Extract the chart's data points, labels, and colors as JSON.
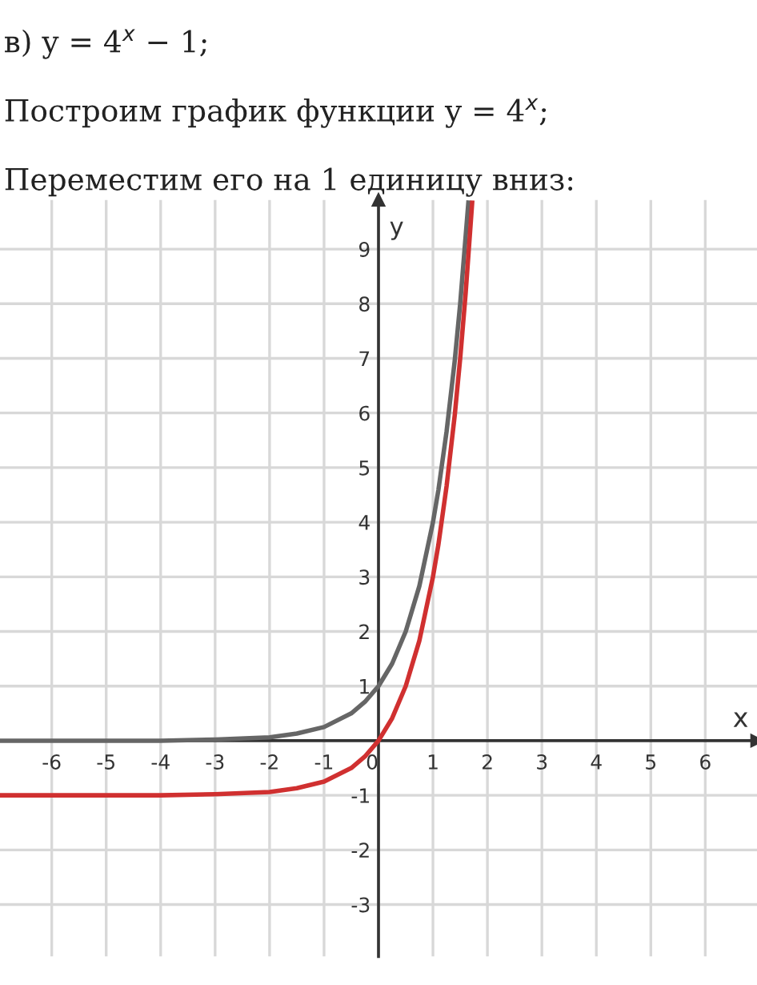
{
  "chart_data": {
    "type": "line",
    "annotations": [
      "в) y = 4$^{x}$ − 1;",
      "Построим график функции y = 4$^{x}$;",
      "Переместим его на 1 единицу вниз:"
    ],
    "xlabel": "x",
    "ylabel": "y",
    "series": [
      {
        "color": "#666666",
        "x": [
          -6.95,
          -5,
          -4,
          -3,
          -2,
          -1.5,
          -1,
          -0.5,
          -0.25,
          0,
          0.25,
          0.5,
          0.75,
          1,
          1.1,
          1.25,
          1.4,
          1.5,
          1.65
        ],
        "values": [
          0,
          0,
          0,
          0.02,
          0.06,
          0.13,
          0.25,
          0.5,
          0.71,
          1,
          1.41,
          2,
          2.83,
          4,
          4.59,
          5.66,
          6.96,
          8,
          9.85
        ]
      },
      {
        "color": "#d03030",
        "x": [
          -6.95,
          -5,
          -4,
          -3,
          -2,
          -1.5,
          -1,
          -0.5,
          -0.25,
          0,
          0.25,
          0.5,
          0.75,
          1,
          1.1,
          1.25,
          1.4,
          1.5,
          1.6,
          1.72
        ],
        "values": [
          -1,
          -1,
          -1,
          -0.98,
          -0.94,
          -0.87,
          -0.75,
          -0.5,
          -0.29,
          0,
          0.41,
          1,
          1.83,
          3,
          3.59,
          4.66,
          5.96,
          7,
          8.19,
          9.85
        ]
      }
    ],
    "xlim": [
      -6.95,
      6.95
    ],
    "ylim": [
      -3.95,
      9.9
    ],
    "xticks": [
      -6,
      -5,
      -4,
      -3,
      -2,
      -1,
      0,
      1,
      2,
      3,
      4,
      5,
      6
    ],
    "yticks": [
      -3,
      -2,
      -1,
      1,
      2,
      3,
      4,
      5,
      6,
      7,
      8,
      9
    ],
    "grid": true,
    "line_style": "solid",
    "marker": "none"
  }
}
